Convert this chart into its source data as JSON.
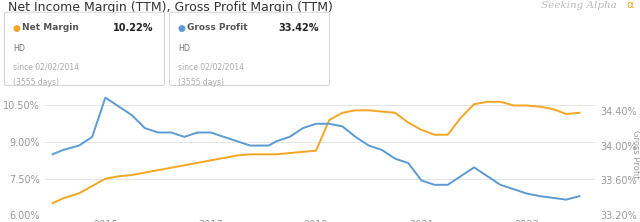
{
  "title": "Net Income Margin (TTM), Gross Profit Margin (TTM)",
  "watermark": "Seeking Alpha",
  "net_label": "Net Margin",
  "net_value": "10.22%",
  "gross_label": "Gross Profit",
  "gross_value": "33.42%",
  "sub1": "HD",
  "sub2": "since 02/02/2014",
  "sub3": "(3555 days)",
  "net_margin_x": [
    2014.0,
    2014.2,
    2014.5,
    2014.75,
    2015.0,
    2015.25,
    2015.5,
    2015.75,
    2016.0,
    2016.25,
    2016.5,
    2016.75,
    2017.0,
    2017.25,
    2017.5,
    2017.75,
    2018.0,
    2018.1,
    2018.25,
    2018.5,
    2018.75,
    2019.0,
    2019.25,
    2019.5,
    2019.75,
    2020.0,
    2020.25,
    2020.5,
    2020.75,
    2021.0,
    2021.25,
    2021.5,
    2021.75,
    2022.0,
    2022.25,
    2022.5,
    2022.75,
    2023.0,
    2023.25,
    2023.5,
    2023.75,
    2024.0
  ],
  "net_margin_y": [
    6.5,
    6.7,
    6.9,
    7.2,
    7.5,
    7.6,
    7.65,
    7.75,
    7.85,
    7.95,
    8.05,
    8.15,
    8.25,
    8.35,
    8.45,
    8.5,
    8.5,
    8.5,
    8.5,
    8.55,
    8.6,
    8.65,
    9.9,
    10.2,
    10.3,
    10.3,
    10.25,
    10.2,
    9.8,
    9.5,
    9.3,
    9.3,
    10.0,
    10.55,
    10.65,
    10.65,
    10.5,
    10.5,
    10.45,
    10.35,
    10.15,
    10.2
  ],
  "gross_margin_x": [
    2014.0,
    2014.2,
    2014.5,
    2014.75,
    2015.0,
    2015.25,
    2015.5,
    2015.75,
    2016.0,
    2016.25,
    2016.5,
    2016.75,
    2017.0,
    2017.25,
    2017.5,
    2017.75,
    2018.0,
    2018.1,
    2018.25,
    2018.5,
    2018.75,
    2019.0,
    2019.25,
    2019.5,
    2019.75,
    2020.0,
    2020.25,
    2020.5,
    2020.75,
    2021.0,
    2021.25,
    2021.5,
    2021.75,
    2022.0,
    2022.25,
    2022.5,
    2022.75,
    2023.0,
    2023.25,
    2023.5,
    2023.75,
    2024.0
  ],
  "gross_margin_y": [
    33.9,
    33.95,
    34.0,
    34.1,
    34.55,
    34.45,
    34.35,
    34.2,
    34.15,
    34.15,
    34.1,
    34.15,
    34.15,
    34.1,
    34.05,
    34.0,
    34.0,
    34.0,
    34.05,
    34.1,
    34.2,
    34.25,
    34.25,
    34.22,
    34.1,
    34.0,
    33.95,
    33.85,
    33.8,
    33.6,
    33.55,
    33.55,
    33.65,
    33.75,
    33.65,
    33.55,
    33.5,
    33.45,
    33.42,
    33.4,
    33.38,
    33.42
  ],
  "net_color": "#f5a623",
  "gross_color": "#5b9bd5",
  "bg_color": "#ffffff",
  "grid_color": "#e0e0e0",
  "axis_text_color": "#999999",
  "title_color": "#333333",
  "label_color": "#555555",
  "y_left_label": "Net Margin",
  "y_right_label": "Gross Profit",
  "ylim_left": [
    6.0,
    11.0
  ],
  "ylim_right": [
    33.2,
    34.6
  ],
  "yticks_left": [
    6.0,
    7.5,
    9.0,
    10.5
  ],
  "yticks_right": [
    33.2,
    33.6,
    34.0,
    34.4
  ],
  "xtick_years": [
    2015,
    2017,
    2019,
    2021,
    2023
  ],
  "xlim": [
    2013.85,
    2024.3
  ]
}
